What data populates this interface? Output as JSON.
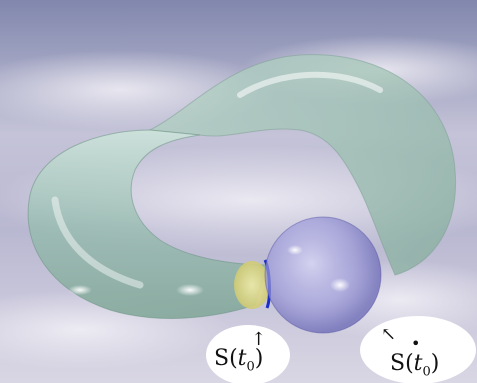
{
  "labels": {
    "left": {
      "prefix": "S",
      "open": "(",
      "var": "t",
      "sub": "0",
      "close": ")",
      "arrow": "↑"
    },
    "right": {
      "prefix": "S",
      "open": "(",
      "var": "t",
      "sub": "0",
      "close": ")",
      "arrow": "↖",
      "dot": "•"
    }
  },
  "colors": {
    "sky_top": "#8a8fb4",
    "sky_bottom": "#d7d4e3",
    "tube": "#9fc2b4",
    "sphere": "#a7a6e0",
    "disk_yellow": "#e6e08a",
    "edge_blue": "#1a2fc8"
  }
}
